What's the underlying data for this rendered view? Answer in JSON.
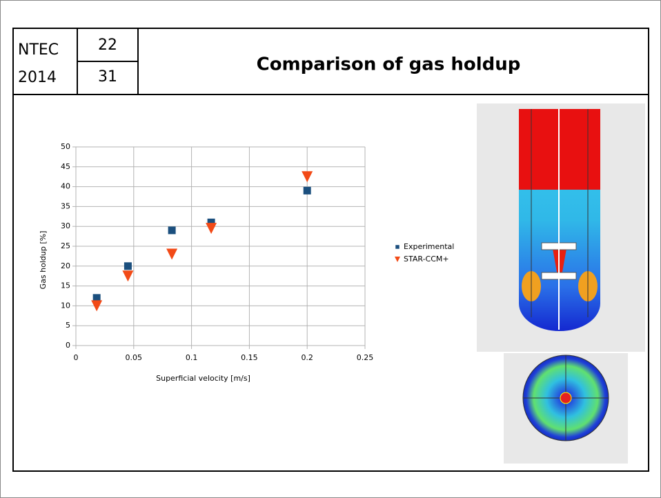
{
  "header": {
    "event": "NTEC",
    "year": "2014",
    "slide_number": "22",
    "slide_total": "31",
    "title": "Comparison of gas holdup"
  },
  "chart_data": {
    "type": "scatter",
    "xlabel": "Superficial velocity [m/s]",
    "ylabel": "Gas holdup [%]",
    "xlim": [
      0,
      0.25
    ],
    "xticks": [
      0,
      0.05,
      0.1,
      0.15,
      0.2,
      0.25
    ],
    "ylim": [
      0,
      50
    ],
    "yticks": [
      0,
      5,
      10,
      15,
      20,
      25,
      30,
      35,
      40,
      45,
      50
    ],
    "grid": true,
    "legend": "right",
    "series": [
      {
        "name": "Experimental",
        "color": "#1b4f7e",
        "marker": "square",
        "x": [
          0.018,
          0.045,
          0.083,
          0.117,
          0.2
        ],
        "values": [
          12,
          20,
          29,
          31,
          39
        ]
      },
      {
        "name": "STAR-CCM+",
        "color": "#f24a17",
        "marker": "triangle-down",
        "x": [
          0.018,
          0.045,
          0.083,
          0.117,
          0.2
        ],
        "values": [
          10,
          17.5,
          23,
          29.5,
          42.5
        ]
      }
    ]
  }
}
